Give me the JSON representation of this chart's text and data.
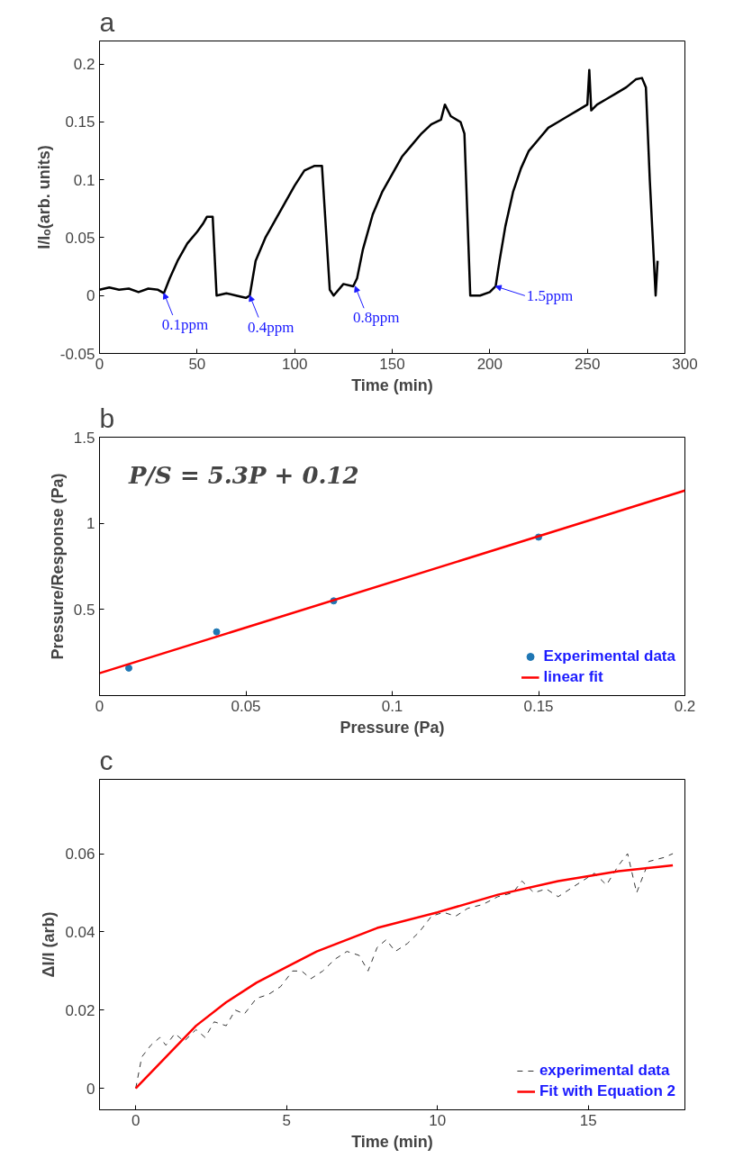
{
  "chart_data": [
    {
      "type": "line",
      "title": "a",
      "xlabel": "Time (min)",
      "ylabel": "I/Iₒ(arb. units)",
      "xlim": [
        0,
        300
      ],
      "ylim": [
        -0.05,
        0.22
      ],
      "xticks": [
        0,
        50,
        100,
        150,
        200,
        250,
        300
      ],
      "yticks": [
        -0.05,
        0,
        0.05,
        0.1,
        0.15,
        0.2
      ],
      "grid": false,
      "legend": false,
      "series": [
        {
          "color": "#000000",
          "x": [
            0,
            5,
            10,
            15,
            20,
            25,
            30,
            33,
            36,
            40,
            45,
            50,
            53,
            55,
            58,
            60,
            65,
            70,
            75,
            77,
            80,
            85,
            90,
            95,
            100,
            105,
            110,
            114,
            118,
            120,
            125,
            130,
            132,
            135,
            140,
            145,
            150,
            155,
            160,
            165,
            170,
            175,
            177,
            180,
            185,
            187,
            190,
            195,
            200,
            203,
            205,
            208,
            212,
            216,
            220,
            225,
            230,
            235,
            240,
            245,
            250,
            251,
            252,
            255,
            260,
            265,
            270,
            275,
            278,
            280,
            282,
            285,
            286
          ],
          "values": [
            0.005,
            0.007,
            0.005,
            0.006,
            0.003,
            0.006,
            0.005,
            0.002,
            0.015,
            0.03,
            0.045,
            0.055,
            0.062,
            0.068,
            0.068,
            0.0,
            0.002,
            0.0,
            -0.002,
            0.0,
            0.03,
            0.05,
            0.065,
            0.08,
            0.095,
            0.108,
            0.112,
            0.112,
            0.005,
            0.0,
            0.01,
            0.008,
            0.015,
            0.04,
            0.07,
            0.09,
            0.105,
            0.12,
            0.13,
            0.14,
            0.148,
            0.152,
            0.165,
            0.155,
            0.15,
            0.14,
            0.0,
            0.0,
            0.003,
            0.008,
            0.03,
            0.06,
            0.09,
            0.11,
            0.125,
            0.135,
            0.145,
            0.15,
            0.155,
            0.16,
            0.165,
            0.195,
            0.16,
            0.165,
            0.17,
            0.175,
            0.18,
            0.187,
            0.188,
            0.18,
            0.1,
            0.0,
            0.03
          ]
        }
      ],
      "annotations": [
        {
          "text": "0.1ppm",
          "x": 33,
          "y": 0.002
        },
        {
          "text": "0.4ppm",
          "x": 77,
          "y": 0.0
        },
        {
          "text": "0.8ppm",
          "x": 131,
          "y": 0.008
        },
        {
          "text": "1.5ppm",
          "x": 203,
          "y": 0.008
        }
      ]
    },
    {
      "type": "scatter",
      "title": "b",
      "xlabel": "Pressure (Pa)",
      "ylabel": "Pressure/Response (Pa)",
      "xlim": [
        0,
        0.2
      ],
      "ylim": [
        0,
        1.5
      ],
      "xticks": [
        0,
        0.05,
        0.1,
        0.15,
        0.2
      ],
      "yticks": [
        0.5,
        1,
        1.5
      ],
      "grid": false,
      "legend": "bottom right",
      "series": [
        {
          "name": "Experimental data",
          "color": "#1f77b4",
          "marker": "circle",
          "x": [
            0.01,
            0.04,
            0.08,
            0.15
          ],
          "values": [
            0.16,
            0.37,
            0.55,
            0.92
          ]
        },
        {
          "name": "linear fit",
          "type": "line",
          "color": "#ff0000",
          "x": [
            0,
            0.2
          ],
          "values": [
            0.13,
            1.19
          ]
        }
      ],
      "annotations": [
        "P/S = 5.3P + 0.12"
      ]
    },
    {
      "type": "line",
      "title": "c",
      "xlabel": "Time (min)",
      "ylabel": "ΔI/I (arb)",
      "xlim": [
        -1.2,
        18.2
      ],
      "ylim": [
        -0.0055,
        0.079
      ],
      "xticks": [
        0,
        5,
        10,
        15
      ],
      "yticks": [
        0,
        0.02,
        0.04,
        0.06
      ],
      "grid": false,
      "legend": "bottom right",
      "series": [
        {
          "name": "experimental data",
          "color": "#333333",
          "line_style": "dashed",
          "x": [
            0,
            0.2,
            0.5,
            0.8,
            1,
            1.3,
            1.6,
            2,
            2.3,
            2.6,
            3,
            3.3,
            3.6,
            4,
            4.4,
            4.8,
            5.2,
            5.5,
            5.8,
            6.2,
            6.6,
            7,
            7.4,
            7.7,
            8,
            8.3,
            8.6,
            9,
            9.4,
            9.8,
            10.2,
            10.6,
            11,
            11.5,
            12,
            12.5,
            12.8,
            13.2,
            13.6,
            14,
            14.4,
            14.8,
            15.2,
            15.6,
            16,
            16.3,
            16.6,
            17,
            17.5,
            17.8
          ],
          "values": [
            0.0,
            0.008,
            0.011,
            0.013,
            0.011,
            0.014,
            0.012,
            0.015,
            0.013,
            0.017,
            0.016,
            0.02,
            0.019,
            0.023,
            0.024,
            0.026,
            0.03,
            0.03,
            0.028,
            0.03,
            0.033,
            0.035,
            0.034,
            0.03,
            0.036,
            0.038,
            0.035,
            0.037,
            0.04,
            0.044,
            0.045,
            0.044,
            0.046,
            0.047,
            0.049,
            0.05,
            0.053,
            0.05,
            0.051,
            0.049,
            0.051,
            0.053,
            0.055,
            0.052,
            0.057,
            0.06,
            0.05,
            0.058,
            0.059,
            0.06
          ]
        },
        {
          "name": "Fit with Equation 2",
          "color": "#ff0000",
          "x": [
            0,
            1,
            2,
            3,
            4,
            5,
            6,
            8,
            10,
            12,
            14,
            16,
            17.8
          ],
          "values": [
            0.0,
            0.008,
            0.016,
            0.022,
            0.027,
            0.031,
            0.035,
            0.041,
            0.045,
            0.0495,
            0.053,
            0.0555,
            0.057
          ]
        }
      ]
    }
  ]
}
